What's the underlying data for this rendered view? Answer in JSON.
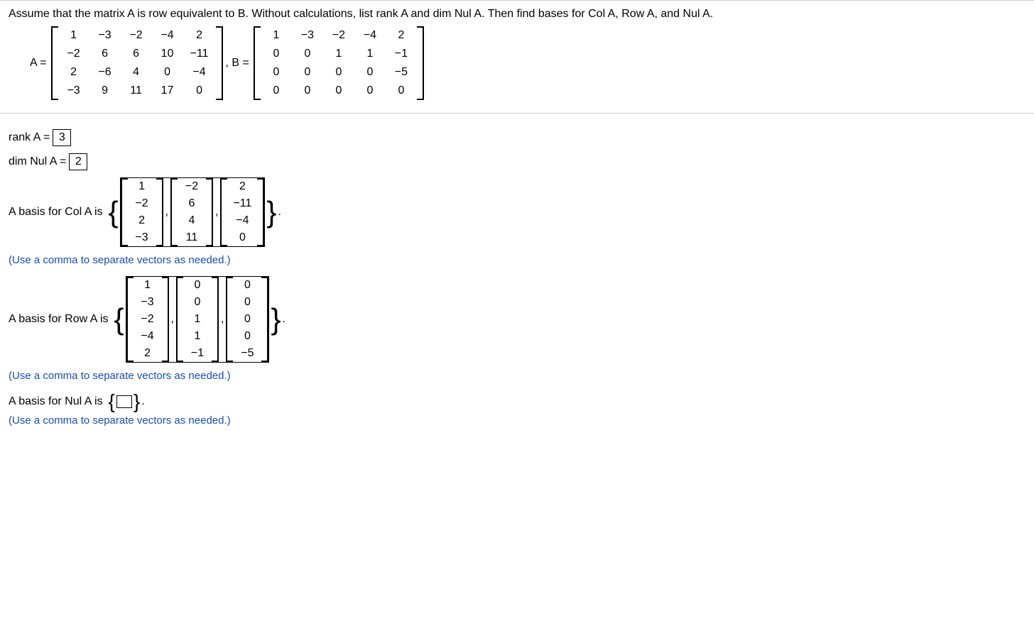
{
  "question": "Assume that the matrix A is row equivalent to B. Without calculations, list rank A and dim Nul A. Then find bases for Col A, Row A, and Nul A.",
  "eqA_label": "A =",
  "eqB_label": ", B =",
  "matrixA": [
    [
      "1",
      "−3",
      "−2",
      "−4",
      "2"
    ],
    [
      "−2",
      "6",
      "6",
      "10",
      "−11"
    ],
    [
      "2",
      "−6",
      "4",
      "0",
      "−4"
    ],
    [
      "−3",
      "9",
      "11",
      "17",
      "0"
    ]
  ],
  "matrixB": [
    [
      "1",
      "−3",
      "−2",
      "−4",
      "2"
    ],
    [
      "0",
      "0",
      "1",
      "1",
      "−1"
    ],
    [
      "0",
      "0",
      "0",
      "0",
      "−5"
    ],
    [
      "0",
      "0",
      "0",
      "0",
      "0"
    ]
  ],
  "rank_label": "rank A =",
  "rank_value": "3",
  "dimnul_label": "dim Nul A =",
  "dimnul_value": "2",
  "colA_label": "A basis for Col A is",
  "colA_vectors": [
    [
      "1",
      "−2",
      "2",
      "−3"
    ],
    [
      "−2",
      "6",
      "4",
      "11"
    ],
    [
      "2",
      "−11",
      "−4",
      "0"
    ]
  ],
  "rowA_label": "A basis for Row A is",
  "rowA_vectors": [
    [
      "1",
      "−3",
      "−2",
      "−4",
      "2"
    ],
    [
      "0",
      "0",
      "1",
      "1",
      "−1"
    ],
    [
      "0",
      "0",
      "0",
      "0",
      "−5"
    ]
  ],
  "nulA_label": "A basis for Nul A is",
  "hint": "(Use a comma to separate vectors as needed.)",
  "period": "."
}
